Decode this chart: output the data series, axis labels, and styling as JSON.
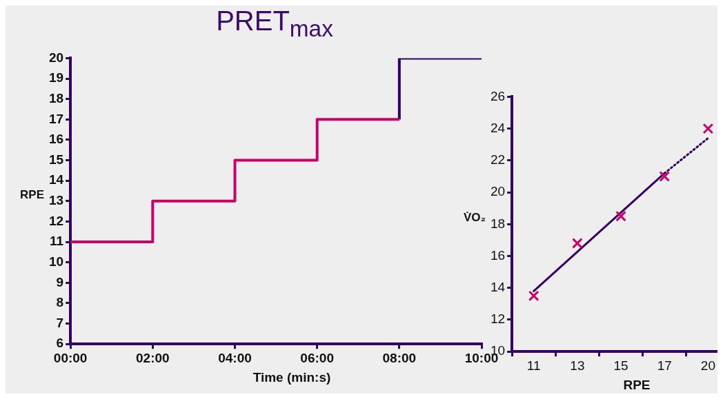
{
  "chart_data": [
    {
      "type": "step",
      "title": "PRET$_{max}$",
      "xlabel": "Time (min:s)",
      "ylabel": "RPE",
      "xlim": [
        0,
        10
      ],
      "xticks": [
        {
          "value": 0,
          "label": "00:00"
        },
        {
          "value": 2,
          "label": "02:00"
        },
        {
          "value": 4,
          "label": "04:00"
        },
        {
          "value": 6,
          "label": "06:00"
        },
        {
          "value": 8,
          "label": "08:00"
        },
        {
          "value": 10,
          "label": "10:00"
        }
      ],
      "ylim": [
        6,
        20
      ],
      "yticks": [
        6,
        7,
        8,
        9,
        10,
        11,
        12,
        13,
        14,
        15,
        16,
        17,
        18,
        19,
        20
      ],
      "grid": false,
      "legend": false,
      "series": [
        {
          "color": "#cc0066",
          "x": [
            0,
            2,
            4,
            6,
            8
          ],
          "values": [
            11,
            13,
            15,
            17,
            17
          ]
        },
        {
          "color": "#330066",
          "x": [
            8,
            8,
            10
          ],
          "values": [
            17,
            20,
            20
          ]
        }
      ]
    },
    {
      "type": "scatter",
      "xlabel": "RPE",
      "ylabel": "V̇O₂",
      "categories": [
        "11",
        "13",
        "15",
        "17",
        "20"
      ],
      "ylim": [
        10,
        26
      ],
      "yticks": [
        10,
        12,
        14,
        16,
        18,
        20,
        22,
        24,
        26
      ],
      "grid": false,
      "legend": false,
      "series": [
        {
          "type": "scatter",
          "color": "#cc0066",
          "marker": "cross",
          "values": [
            13.5,
            16.8,
            18.5,
            21,
            24
          ]
        },
        {
          "type": "line",
          "color": "#330066",
          "line_style": "solid",
          "x": [
            "11",
            "17"
          ],
          "values": [
            13.8,
            21.2
          ]
        },
        {
          "type": "line",
          "color": "#330066",
          "line_style": "dotted",
          "x": [
            "17",
            "20"
          ],
          "values": [
            21.2,
            23.4
          ]
        }
      ]
    }
  ]
}
